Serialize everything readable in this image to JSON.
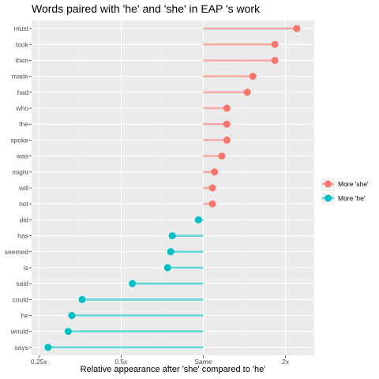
{
  "chart_data": {
    "type": "lollipop",
    "title": "Words paired with 'he' and 'she' in  EAP 's work",
    "xlabel": "Relative appearance after 'she' compared to 'he'",
    "ylabel": "",
    "x_scale": "log2",
    "x_ticks": [
      {
        "value": 0.25,
        "label": "0.25x"
      },
      {
        "value": 0.5,
        "label": "0.5x"
      },
      {
        "value": 1,
        "label": "Same"
      },
      {
        "value": 2,
        "label": "2x"
      }
    ],
    "xlim": [
      0.235,
      2.55
    ],
    "baseline": 1,
    "grid": true,
    "legend_position": "right",
    "series": [
      {
        "name": "More 'she'",
        "color": "#F8766D"
      },
      {
        "name": "More 'he'",
        "color": "#00BFC4"
      }
    ],
    "points": [
      {
        "word": "must",
        "value": 2.2,
        "series": "More 'she'"
      },
      {
        "word": "took",
        "value": 1.83,
        "series": "More 'she'"
      },
      {
        "word": "then",
        "value": 1.83,
        "series": "More 'she'"
      },
      {
        "word": "made",
        "value": 1.52,
        "series": "More 'she'"
      },
      {
        "word": "had",
        "value": 1.45,
        "series": "More 'she'"
      },
      {
        "word": "who",
        "value": 1.22,
        "series": "More 'she'"
      },
      {
        "word": "the",
        "value": 1.22,
        "series": "More 'she'"
      },
      {
        "word": "spoke",
        "value": 1.22,
        "series": "More 'she'"
      },
      {
        "word": "was",
        "value": 1.17,
        "series": "More 'she'"
      },
      {
        "word": "might",
        "value": 1.1,
        "series": "More 'she'"
      },
      {
        "word": "will",
        "value": 1.08,
        "series": "More 'she'"
      },
      {
        "word": "not",
        "value": 1.08,
        "series": "More 'she'"
      },
      {
        "word": "did",
        "value": 0.96,
        "series": "More 'he'"
      },
      {
        "word": "has",
        "value": 0.77,
        "series": "More 'he'"
      },
      {
        "word": "seemed",
        "value": 0.76,
        "series": "More 'he'"
      },
      {
        "word": "is",
        "value": 0.74,
        "series": "More 'he'"
      },
      {
        "word": "said",
        "value": 0.55,
        "series": "More 'he'"
      },
      {
        "word": "could",
        "value": 0.36,
        "series": "More 'he'"
      },
      {
        "word": "he",
        "value": 0.33,
        "series": "More 'he'"
      },
      {
        "word": "would",
        "value": 0.32,
        "series": "More 'he'"
      },
      {
        "word": "says",
        "value": 0.27,
        "series": "More 'he'"
      }
    ]
  }
}
